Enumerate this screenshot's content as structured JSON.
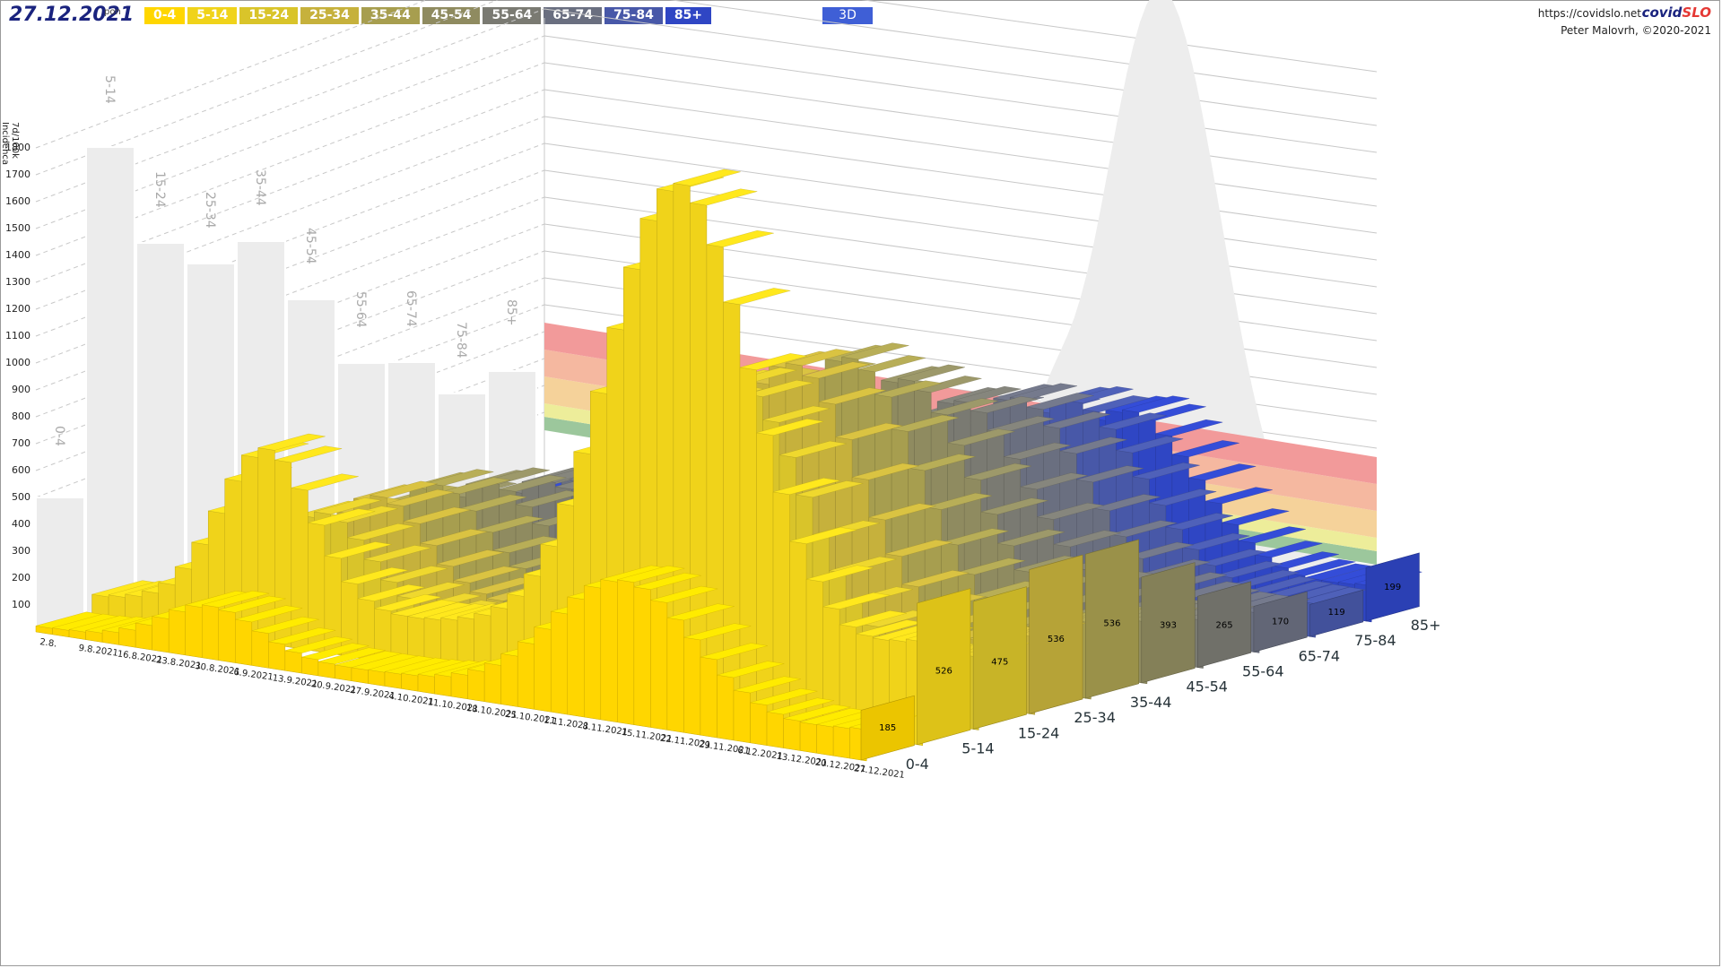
{
  "header": {
    "date": "27.12.2021",
    "day": "pon",
    "url": "https://covidslo.net",
    "brand_a": "covid",
    "brand_b": "SLO",
    "author": "Peter Malovrh, ©2020-2021",
    "mode_button": "3D",
    "ylabel_line1": "7d/100k",
    "ylabel_line2": "Incidenca"
  },
  "chart_data": {
    "type": "bar3d",
    "title": "",
    "ylabel": "7d/100k Incidenca",
    "ylim": [
      0,
      1800
    ],
    "yticks": [
      100,
      200,
      300,
      400,
      500,
      600,
      700,
      800,
      900,
      1000,
      1100,
      1200,
      1300,
      1400,
      1500,
      1600,
      1700,
      1800
    ],
    "date_ticks": [
      "2.8.",
      "9.8.2021",
      "16.8.2021",
      "23.8.2021",
      "30.8.2021",
      "6.9.2021",
      "13.9.2021",
      "20.9.2021",
      "27.9.2021",
      "4.10.2021",
      "11.10.2021",
      "18.10.2021",
      "25.10.2021",
      "1.11.2021",
      "8.11.2021",
      "15.11.2021",
      "22.11.2021",
      "29.11.2021",
      "6.12.2021",
      "13.12.2021",
      "20.12.2021",
      "27.12.2021"
    ],
    "series": [
      {
        "name": "0-4",
        "color": "#ffd600",
        "peak": 460,
        "last": 185,
        "wall": 500
      },
      {
        "name": "5-14",
        "color": "#f0d31a",
        "peak": 1690,
        "last": 526,
        "wall": 1800
      },
      {
        "name": "15-24",
        "color": "#d9c42a",
        "peak": 1000,
        "last": 475,
        "wall": 1440
      },
      {
        "name": "25-34",
        "color": "#c6b13c",
        "peak": 1010,
        "last": 536,
        "wall": 1360
      },
      {
        "name": "35-44",
        "color": "#a79e4f",
        "peak": 980,
        "last": 536,
        "wall": 1440
      },
      {
        "name": "45-54",
        "color": "#8f8b60",
        "peak": 860,
        "last": 393,
        "wall": 1220
      },
      {
        "name": "55-64",
        "color": "#7a7a72",
        "peak": 740,
        "last": 265,
        "wall": 980
      },
      {
        "name": "65-74",
        "color": "#6a6f80",
        "peak": 700,
        "last": 170,
        "wall": 980
      },
      {
        "name": "75-84",
        "color": "#4858a8",
        "peak": 640,
        "last": 119,
        "wall": 860
      },
      {
        "name": "85+",
        "color": "#2f46c4",
        "peak": 560,
        "last": 199,
        "wall": 940
      }
    ],
    "risk_bands": [
      {
        "from": 0,
        "to": 50,
        "color": "#9cc79c"
      },
      {
        "from": 50,
        "to": 100,
        "color": "#eded9a"
      },
      {
        "from": 100,
        "to": 200,
        "color": "#f5d29a"
      },
      {
        "from": 200,
        "to": 300,
        "color": "#f5b8a0"
      },
      {
        "from": 300,
        "to": 400,
        "color": "#f29a9a"
      }
    ]
  }
}
